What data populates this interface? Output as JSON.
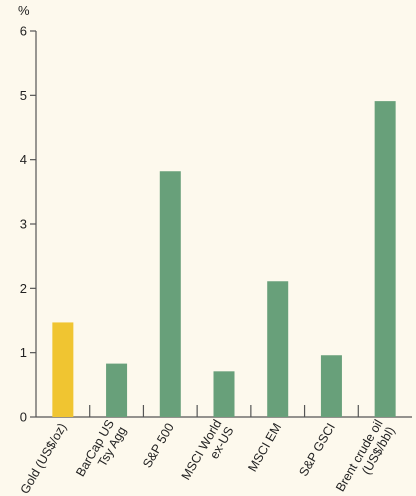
{
  "chart_data": {
    "type": "bar",
    "unit_label": "%",
    "ylim": [
      0,
      6
    ],
    "yticks": [
      "0",
      "1",
      "2",
      "3",
      "4",
      "5",
      "6"
    ],
    "grid": false,
    "legend": "none",
    "categories": [
      [
        "Gold (US$/oz)"
      ],
      [
        "BarCap US",
        "Tsy Agg"
      ],
      [
        "S&P 500"
      ],
      [
        "MSCI World",
        "ex-US"
      ],
      [
        "MSCI EM"
      ],
      [
        "S&P GSCI"
      ],
      [
        "Brent crude oil",
        "(US$/bbl)"
      ]
    ],
    "values": [
      1.47,
      0.83,
      3.82,
      0.71,
      2.11,
      0.96,
      4.91
    ],
    "colors": [
      "#f0c531",
      "#68a07a",
      "#68a07a",
      "#68a07a",
      "#68a07a",
      "#68a07a",
      "#68a07a"
    ],
    "axis_color": "#555555"
  }
}
